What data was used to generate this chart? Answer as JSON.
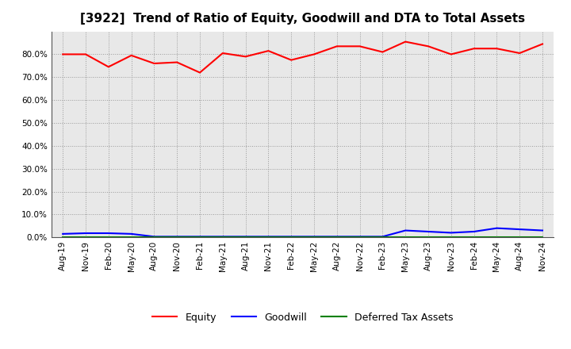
{
  "title": "[3922]  Trend of Ratio of Equity, Goodwill and DTA to Total Assets",
  "x_labels": [
    "Aug-19",
    "Nov-19",
    "Feb-20",
    "May-20",
    "Aug-20",
    "Nov-20",
    "Feb-21",
    "May-21",
    "Aug-21",
    "Nov-21",
    "Feb-22",
    "May-22",
    "Aug-22",
    "Nov-22",
    "Feb-23",
    "May-23",
    "Aug-23",
    "Nov-23",
    "Feb-24",
    "May-24",
    "Aug-24",
    "Nov-24"
  ],
  "equity": [
    80.0,
    80.0,
    74.5,
    79.5,
    76.0,
    76.5,
    72.0,
    80.5,
    79.0,
    81.5,
    77.5,
    80.0,
    83.5,
    83.5,
    81.0,
    85.5,
    83.5,
    80.0,
    82.5,
    82.5,
    80.5,
    84.5
  ],
  "goodwill": [
    1.5,
    1.8,
    1.8,
    1.5,
    0.3,
    0.3,
    0.3,
    0.3,
    0.3,
    0.3,
    0.3,
    0.3,
    0.3,
    0.3,
    0.3,
    3.0,
    2.5,
    2.0,
    2.5,
    4.0,
    3.5,
    3.0
  ],
  "dta": [
    0.0,
    0.0,
    0.0,
    0.0,
    0.0,
    0.0,
    0.0,
    0.0,
    0.0,
    0.0,
    0.0,
    0.0,
    0.0,
    0.0,
    0.0,
    0.0,
    0.0,
    0.0,
    0.0,
    0.0,
    0.0,
    0.0
  ],
  "equity_color": "#ff0000",
  "goodwill_color": "#0000ff",
  "dta_color": "#008000",
  "ylim_max": 90,
  "yticks": [
    0,
    10,
    20,
    30,
    40,
    50,
    60,
    70,
    80
  ],
  "background_color": "#ffffff",
  "plot_bg_color": "#e8e8e8",
  "grid_color": "#999999",
  "legend_equity": "Equity",
  "legend_goodwill": "Goodwill",
  "legend_dta": "Deferred Tax Assets",
  "title_fontsize": 11,
  "tick_fontsize": 7.5,
  "legend_fontsize": 9
}
